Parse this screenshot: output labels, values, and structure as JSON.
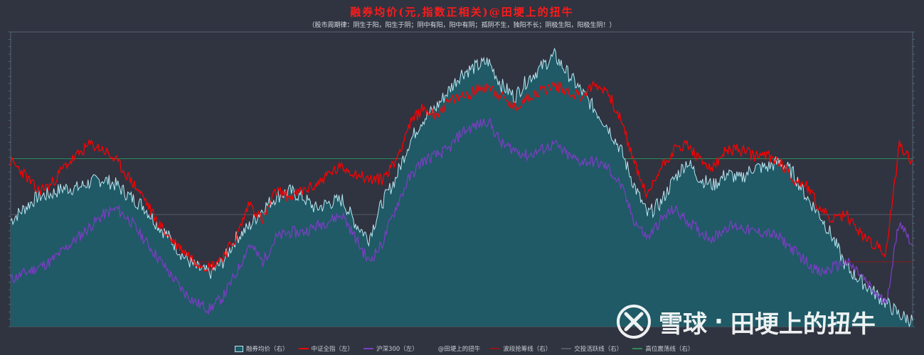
{
  "title": "融券均价(元,指数正相关)@田埂上的扭牛",
  "subtitle": "（股市周期律：阴生于阳，阳生于阴；阴中有阳，阳中有阴；孤阴不生，独阳不长；阴极生阳，阳极生阴！）",
  "watermark": {
    "brand": "雪球",
    "separator": "·",
    "author": "田埂上的扭牛"
  },
  "colors": {
    "background": "#2f3440",
    "area_fill": "#1f5a66",
    "area_line": "#b8e7f2",
    "zzqz": "#ff0000",
    "hs300": "#7a3ec2",
    "grid_green": "#2e8b57",
    "grid_red": "#8b1a1a"
  },
  "legend": [
    {
      "label": "融券均价（右）",
      "color": "#1f5a66",
      "kind": "area"
    },
    {
      "label": "中证全指（左）",
      "color": "#ff0000",
      "kind": "line"
    },
    {
      "label": "沪深300（左）",
      "color": "#7a3ec2",
      "kind": "line"
    },
    {
      "label": "@田埂上的扭牛",
      "color": "#2f3440",
      "kind": "none"
    },
    {
      "label": "波段抢筹线（右）",
      "color": "#8b1a1a",
      "kind": "line"
    },
    {
      "label": "交投活跃线（右）",
      "color": "#555b66",
      "kind": "line"
    },
    {
      "label": "高位震荡线（右）",
      "color": "#2e8b57",
      "kind": "line"
    }
  ],
  "chart_data": {
    "type": "line",
    "title": "融券均价(元,指数正相关)@田埂上的扭牛",
    "x_positions_normalized": true,
    "reference_lines": [
      {
        "name": "高位震荡线（右）",
        "y": 0.57
      },
      {
        "name": "交投活跃线（右）",
        "y": 0.38
      },
      {
        "name": "波段抢筹线（右）",
        "y": 0.22
      }
    ],
    "series": [
      {
        "name": "融券均价（右）",
        "type": "area",
        "values": [
          0.36,
          0.4,
          0.44,
          0.45,
          0.47,
          0.47,
          0.49,
          0.5,
          0.48,
          0.44,
          0.41,
          0.35,
          0.3,
          0.24,
          0.2,
          0.18,
          0.22,
          0.3,
          0.34,
          0.4,
          0.44,
          0.46,
          0.44,
          0.4,
          0.42,
          0.43,
          0.35,
          0.3,
          0.42,
          0.5,
          0.62,
          0.7,
          0.74,
          0.8,
          0.86,
          0.88,
          0.9,
          0.82,
          0.78,
          0.84,
          0.88,
          0.92,
          0.86,
          0.8,
          0.74,
          0.68,
          0.6,
          0.48,
          0.38,
          0.42,
          0.5,
          0.56,
          0.5,
          0.48,
          0.52,
          0.5,
          0.54,
          0.54,
          0.56,
          0.52,
          0.44,
          0.38,
          0.3,
          0.2,
          0.16,
          0.12,
          0.08,
          0.04,
          0.02
        ]
      },
      {
        "name": "中证全指（左）",
        "type": "line",
        "values": [
          0.56,
          0.52,
          0.46,
          0.48,
          0.54,
          0.58,
          0.62,
          0.6,
          0.56,
          0.5,
          0.44,
          0.36,
          0.3,
          0.26,
          0.22,
          0.2,
          0.24,
          0.3,
          0.42,
          0.36,
          0.46,
          0.44,
          0.46,
          0.48,
          0.52,
          0.54,
          0.52,
          0.5,
          0.5,
          0.56,
          0.68,
          0.74,
          0.72,
          0.76,
          0.78,
          0.8,
          0.82,
          0.78,
          0.74,
          0.78,
          0.8,
          0.82,
          0.8,
          0.78,
          0.82,
          0.8,
          0.7,
          0.56,
          0.44,
          0.54,
          0.6,
          0.62,
          0.56,
          0.54,
          0.6,
          0.6,
          0.58,
          0.58,
          0.56,
          0.5,
          0.48,
          0.4,
          0.36,
          0.38,
          0.32,
          0.28,
          0.25,
          0.62,
          0.56
        ]
      },
      {
        "name": "沪深300（左）",
        "type": "line",
        "values": [
          0.16,
          0.18,
          0.2,
          0.22,
          0.26,
          0.3,
          0.34,
          0.38,
          0.4,
          0.36,
          0.3,
          0.24,
          0.18,
          0.12,
          0.08,
          0.06,
          0.1,
          0.18,
          0.28,
          0.22,
          0.3,
          0.32,
          0.32,
          0.34,
          0.36,
          0.38,
          0.3,
          0.22,
          0.28,
          0.4,
          0.5,
          0.56,
          0.58,
          0.6,
          0.66,
          0.68,
          0.7,
          0.62,
          0.6,
          0.58,
          0.6,
          0.62,
          0.58,
          0.56,
          0.56,
          0.54,
          0.48,
          0.36,
          0.3,
          0.36,
          0.4,
          0.36,
          0.32,
          0.3,
          0.34,
          0.34,
          0.32,
          0.32,
          0.3,
          0.26,
          0.22,
          0.18,
          0.2,
          0.22,
          0.18,
          0.12,
          0.08,
          0.36,
          0.28
        ]
      }
    ],
    "grid": true,
    "legend_position": "bottom"
  }
}
